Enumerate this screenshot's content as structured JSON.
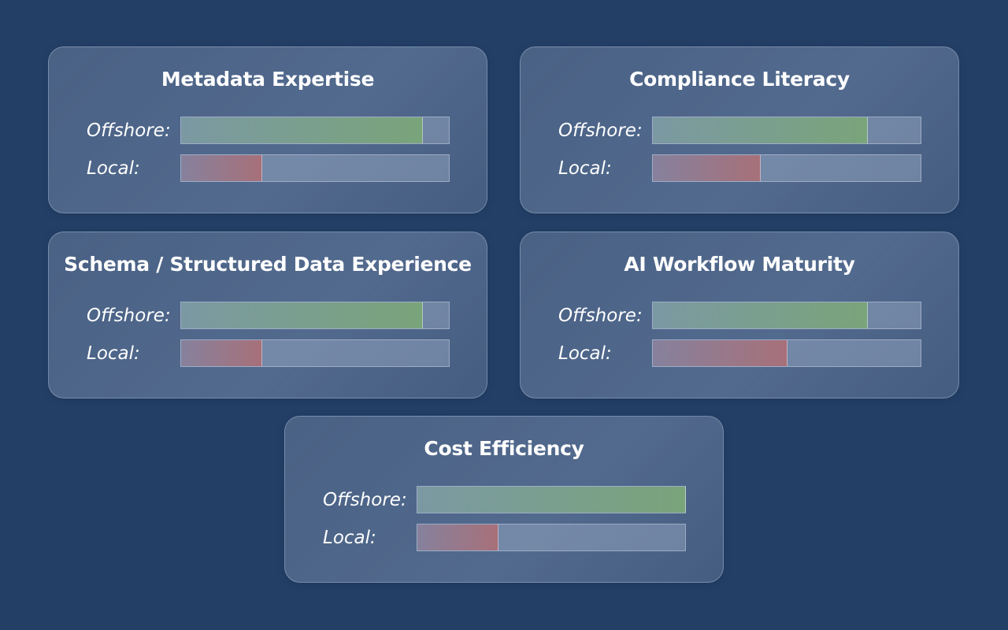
{
  "colors": {
    "background": "#243f66",
    "offshore_bar": "#7aa47a",
    "local_bar": "#a77079",
    "text": "#ffffff"
  },
  "labels": {
    "offshore": "Offshore:",
    "local": "Local:"
  },
  "chart_data": [
    {
      "type": "bar",
      "title": "Metadata Expertise",
      "categories": [
        "Offshore",
        "Local"
      ],
      "values": [
        0.9,
        0.3
      ],
      "xlim": [
        0,
        1
      ]
    },
    {
      "type": "bar",
      "title": "Compliance Literacy",
      "categories": [
        "Offshore",
        "Local"
      ],
      "values": [
        0.8,
        0.4
      ],
      "xlim": [
        0,
        1
      ]
    },
    {
      "type": "bar",
      "title": "Schema / Structured Data Experience",
      "categories": [
        "Offshore",
        "Local"
      ],
      "values": [
        0.9,
        0.3
      ],
      "xlim": [
        0,
        1
      ]
    },
    {
      "type": "bar",
      "title": "AI Workflow Maturity",
      "categories": [
        "Offshore",
        "Local"
      ],
      "values": [
        0.8,
        0.5
      ],
      "xlim": [
        0,
        1
      ]
    },
    {
      "type": "bar",
      "title": "Cost Efficiency",
      "categories": [
        "Offshore",
        "Local"
      ],
      "values": [
        1.0,
        0.3
      ],
      "xlim": [
        0,
        1
      ]
    }
  ]
}
